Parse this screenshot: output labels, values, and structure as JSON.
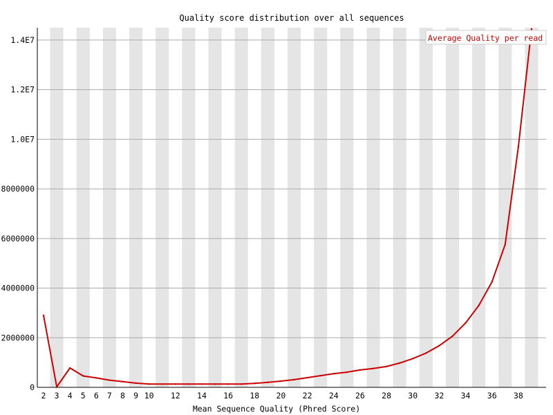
{
  "chart_data": {
    "type": "line",
    "title": "Quality score distribution over all sequences",
    "xlabel": "Mean Sequence Quality (Phred Score)",
    "ylabel": "",
    "xlim": [
      2,
      39
    ],
    "ylim": [
      0,
      14500000
    ],
    "x_tick_labels": [
      "2",
      "3",
      "4",
      "5",
      "6",
      "7",
      "8",
      "9",
      "10",
      "12",
      "14",
      "16",
      "18",
      "20",
      "22",
      "24",
      "26",
      "28",
      "30",
      "32",
      "34",
      "36",
      "38"
    ],
    "y_ticks": [
      {
        "value": 0,
        "label": "0"
      },
      {
        "value": 2000000,
        "label": "2000000"
      },
      {
        "value": 4000000,
        "label": "4000000"
      },
      {
        "value": 6000000,
        "label": "6000000"
      },
      {
        "value": 8000000,
        "label": "8000000"
      },
      {
        "value": 10000000,
        "label": "1.0E7"
      },
      {
        "value": 12000000,
        "label": "1.2E7"
      },
      {
        "value": 14000000,
        "label": "1.4E7"
      }
    ],
    "grid": true,
    "alternating_band_color": "#e5e5e5",
    "legend_position": "top-right",
    "series": [
      {
        "name": "Average Quality per read",
        "color": "#cc0000",
        "x": [
          2,
          3,
          4,
          5,
          6,
          7,
          8,
          9,
          10,
          11,
          12,
          13,
          14,
          15,
          16,
          17,
          18,
          19,
          20,
          21,
          22,
          23,
          24,
          25,
          26,
          27,
          28,
          29,
          30,
          31,
          32,
          33,
          34,
          35,
          36,
          37,
          38,
          39
        ],
        "values": [
          2900000,
          20000,
          780000,
          460000,
          380000,
          290000,
          230000,
          170000,
          130000,
          130000,
          130000,
          130000,
          130000,
          130000,
          130000,
          130000,
          160000,
          200000,
          250000,
          310000,
          390000,
          470000,
          550000,
          610000,
          700000,
          760000,
          840000,
          980000,
          1160000,
          1380000,
          1680000,
          2060000,
          2600000,
          3300000,
          4250000,
          5760000,
          9700000,
          14450000
        ]
      }
    ]
  }
}
